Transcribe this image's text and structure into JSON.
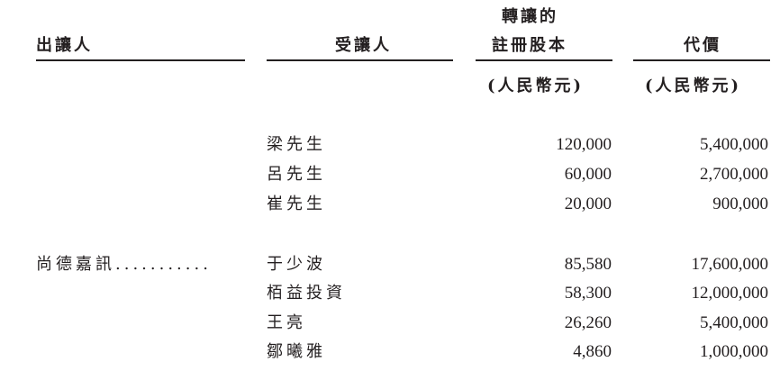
{
  "header": {
    "transferor": "出讓人",
    "transferee": "受讓人",
    "capital_line1": "轉讓的",
    "capital_line2": "註冊股本",
    "consideration": "代價",
    "capital_unit": "(人民幣元)",
    "consideration_unit": "(人民幣元)"
  },
  "groups": [
    {
      "transferor": "",
      "rows": [
        {
          "transferee": "梁先生",
          "capital": "120,000",
          "consideration": "5,400,000"
        },
        {
          "transferee": "呂先生",
          "capital": "60,000",
          "consideration": "2,700,000"
        },
        {
          "transferee": "崔先生",
          "capital": "20,000",
          "consideration": "900,000"
        }
      ]
    },
    {
      "transferor": "尚德嘉訊...........",
      "rows": [
        {
          "transferee": "于少波",
          "capital": "85,580",
          "consideration": "17,600,000"
        },
        {
          "transferee": "栢益投資",
          "capital": "58,300",
          "consideration": "12,000,000"
        },
        {
          "transferee": "王亮",
          "capital": "26,260",
          "consideration": "5,400,000"
        },
        {
          "transferee": "鄒曦雅",
          "capital": "4,860",
          "consideration": "1,000,000"
        }
      ]
    }
  ]
}
